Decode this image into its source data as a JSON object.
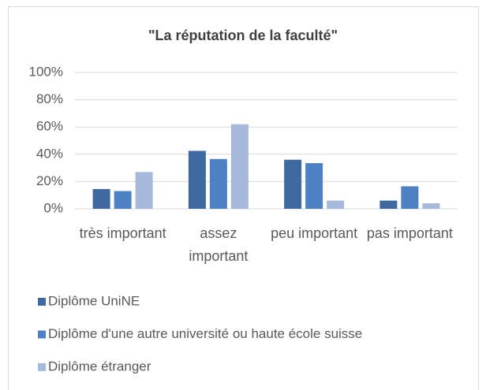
{
  "chart_data": {
    "type": "bar",
    "title": "\"La réputation de la faculté\"",
    "categories": [
      "très important",
      "assez important",
      "peu important",
      "pas important"
    ],
    "series": [
      {
        "name": "Diplôme UniNE",
        "color": "#3e6aa1",
        "values": [
          14.5,
          42.5,
          36,
          6
        ]
      },
      {
        "name": "Diplôme d'une autre université ou haute école suisse",
        "color": "#4e81c4",
        "values": [
          13,
          36.5,
          33.5,
          16.5
        ]
      },
      {
        "name": "Diplôme étranger",
        "color": "#a7b9db",
        "values": [
          27,
          62,
          6,
          4
        ]
      }
    ],
    "ylim": [
      0,
      100
    ],
    "yticks": [
      {
        "value": 0,
        "label": "0%"
      },
      {
        "value": 20,
        "label": "20%"
      },
      {
        "value": 40,
        "label": "40%"
      },
      {
        "value": 60,
        "label": "60%"
      },
      {
        "value": 80,
        "label": "80%"
      },
      {
        "value": 100,
        "label": "100%"
      }
    ],
    "grid": true,
    "legend": "bottom"
  }
}
